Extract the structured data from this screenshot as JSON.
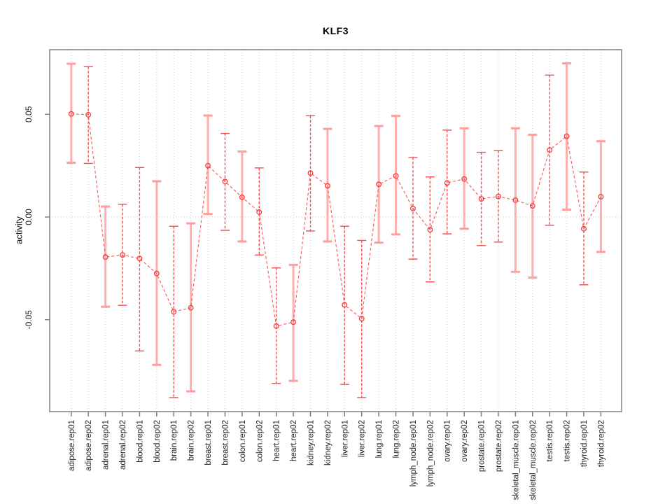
{
  "title": "KLF3",
  "ylabel": "activity",
  "colors": {
    "series_line": "#ff5252",
    "point_stroke": "#f43b3b",
    "errorbar_light": "#ffadad",
    "errorbar_light_cap": "#ff9d9d",
    "errorbar_dark": "#f04f4f",
    "grid": "#c8c8c8",
    "zero_line": "#c8c8c8",
    "plot_border": "#808080",
    "tick_text": "#222222",
    "background": "#ffffff"
  },
  "chart_data": {
    "type": "line",
    "subtype": "points-with-error-bars",
    "title": "KLF3",
    "xlabel": "",
    "ylabel": "activity",
    "legend": "none",
    "grid": "vertical dotted at every category; horizontal dotted at 0.00 only",
    "ylim": [
      -0.095,
      0.0815
    ],
    "yticks": {
      "values": [
        0.05,
        0.0,
        -0.05
      ],
      "labels": [
        "0.05",
        "0.00",
        "-0.05"
      ]
    },
    "categories": [
      "adipose.rep01",
      "adipose.rep02",
      "adrenal.rep01",
      "adrenal.rep02",
      "blood.rep01",
      "blood.rep02",
      "brain.rep01",
      "brain.rep02",
      "breast.rep01",
      "breast.rep02",
      "colon.rep01",
      "colon.rep02",
      "heart.rep01",
      "heart.rep02",
      "kidney.rep01",
      "kidney.rep02",
      "liver.rep01",
      "liver.rep02",
      "lung.rep01",
      "lung.rep02",
      "lymph_node.rep01",
      "lymph_node.rep02",
      "ovary.rep01",
      "ovary.rep02",
      "prostate.rep01",
      "prostate.rep02",
      "skeletal_muscle.rep01",
      "skeletal_muscle.rep02",
      "testis.rep01",
      "testis.rep02",
      "thyroid.rep01",
      "thyroid.rep02"
    ],
    "values": [
      0.0502,
      0.0498,
      -0.0195,
      -0.0185,
      -0.0202,
      -0.0275,
      -0.0461,
      -0.0442,
      0.025,
      0.0173,
      0.0096,
      0.0024,
      -0.0531,
      -0.0512,
      0.0214,
      0.0152,
      -0.0428,
      -0.0495,
      0.0159,
      0.02,
      0.0041,
      -0.0062,
      0.0166,
      0.0185,
      0.0088,
      0.01,
      0.0082,
      0.0054,
      0.0326,
      0.0393,
      -0.0057,
      0.0099
    ],
    "upper": [
      0.0746,
      0.0732,
      0.0051,
      0.0062,
      0.0241,
      0.0174,
      -0.0045,
      -0.0031,
      0.0494,
      0.0407,
      0.0319,
      0.0239,
      -0.0248,
      -0.0233,
      0.0493,
      0.0429,
      -0.0045,
      -0.0114,
      0.0443,
      0.0492,
      0.029,
      0.0195,
      0.0423,
      0.0432,
      0.0315,
      0.0323,
      0.0432,
      0.04,
      0.0691,
      0.0748,
      0.0219,
      0.0369
    ],
    "lower": [
      0.0264,
      0.0261,
      -0.0437,
      -0.043,
      -0.0652,
      -0.072,
      -0.0879,
      -0.0849,
      0.0015,
      -0.0065,
      -0.0119,
      -0.0185,
      -0.081,
      -0.0798,
      -0.0068,
      -0.0119,
      -0.0815,
      -0.0879,
      -0.0125,
      -0.0085,
      -0.0205,
      -0.0316,
      -0.0082,
      -0.0057,
      -0.0139,
      -0.0122,
      -0.0267,
      -0.0295,
      -0.004,
      0.0036,
      -0.033,
      -0.017
    ],
    "bar_styles": [
      "light",
      "dark",
      "light",
      "dark",
      "dark",
      "light",
      "dark",
      "light",
      "light",
      "dark",
      "light",
      "dark",
      "dark",
      "light",
      "dark",
      "light",
      "dark",
      "dark",
      "light",
      "light",
      "dark",
      "dark",
      "dark",
      "light",
      "dark",
      "dark",
      "light",
      "light",
      "dark",
      "light",
      "dark",
      "light"
    ]
  },
  "layout_note": "single panel scatter/line with whisker error bars, R base-graphics style"
}
